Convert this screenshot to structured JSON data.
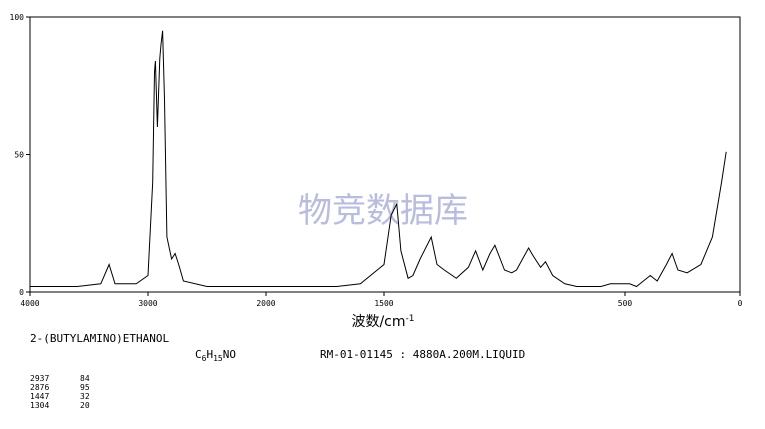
{
  "chart_data": {
    "type": "line",
    "x": [
      4000,
      3600,
      3400,
      3330,
      3280,
      3100,
      3000,
      2960,
      2945,
      2937,
      2920,
      2900,
      2890,
      2876,
      2860,
      2840,
      2800,
      2770,
      2740,
      2700,
      2500,
      2000,
      1700,
      1600,
      1500,
      1470,
      1447,
      1430,
      1400,
      1380,
      1350,
      1304,
      1280,
      1250,
      1200,
      1150,
      1120,
      1090,
      1060,
      1040,
      1000,
      970,
      950,
      900,
      880,
      850,
      830,
      800,
      750,
      700,
      600,
      560,
      520,
      480,
      450,
      420,
      390,
      360,
      320,
      295,
      270,
      230,
      170,
      120,
      80,
      60
    ],
    "values": [
      2,
      2,
      3,
      10,
      3,
      3,
      6,
      40,
      80,
      84,
      60,
      85,
      90,
      95,
      70,
      20,
      12,
      14,
      10,
      4,
      2,
      2,
      2,
      3,
      10,
      28,
      32,
      15,
      5,
      6,
      12,
      20,
      10,
      8,
      5,
      9,
      15,
      8,
      14,
      17,
      8,
      7,
      8,
      16,
      13,
      9,
      11,
      6,
      3,
      2,
      2,
      3,
      3,
      3,
      2,
      4,
      6,
      4,
      10,
      14,
      8,
      7,
      10,
      20,
      40,
      51
    ],
    "color": "#000000",
    "xlim": [
      4000,
      0
    ],
    "ylim": [
      0,
      100
    ],
    "xticks": [
      4000,
      3000,
      2000,
      1500,
      500,
      0
    ],
    "yticks": [
      0,
      50,
      100
    ],
    "xlabel": "波数/cm",
    "xlabel_sup": "-1",
    "compound": "2-(BUTYLAMINO)ETHANOL",
    "formula": [
      "C",
      "6",
      "H",
      "15",
      "NO"
    ],
    "sample": "RM-01-01145 : 4880A.200M.LIQUID",
    "watermark": "物竞数据库",
    "peaks": [
      {
        "wavenumber": 2937,
        "intensity": 84
      },
      {
        "wavenumber": 2876,
        "intensity": 95
      },
      {
        "wavenumber": 1447,
        "intensity": 32
      },
      {
        "wavenumber": 1304,
        "intensity": 20
      }
    ]
  }
}
